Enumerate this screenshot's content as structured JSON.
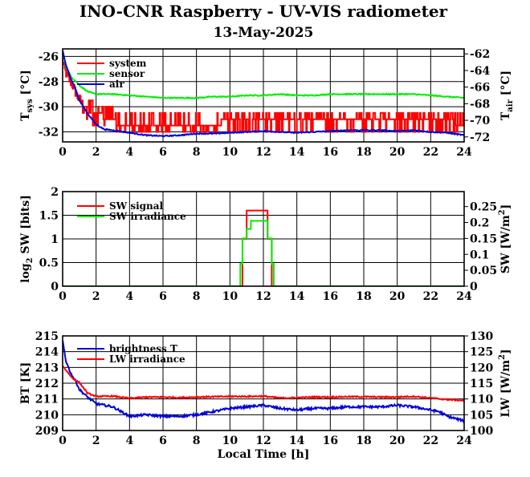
{
  "header": {
    "title": "INO-CNR Raspberry - UV-VIS radiometer",
    "date": "13-May-2025"
  },
  "chart_data": [
    {
      "type": "line",
      "panel": "temperature",
      "xlim": [
        0,
        24
      ],
      "x_ticks": [
        "0",
        "2",
        "4",
        "6",
        "8",
        "10",
        "12",
        "14",
        "16",
        "18",
        "20",
        "22",
        "24"
      ],
      "ylabel_main": "T",
      "ylabel_sub": "sys",
      "ylabel_unit": " [°C]",
      "ylim": [
        -32.8,
        -25.4
      ],
      "y_ticks": [
        "-26",
        "-28",
        "-30",
        "-32"
      ],
      "y2label_main": "T",
      "y2label_sub": "air",
      "y2label_unit": " [°C]",
      "y2lim": [
        -72.6,
        -61.4
      ],
      "y2_ticks": [
        "-62",
        "-64",
        "-66",
        "-68",
        "-70",
        "-72"
      ],
      "legend": "top-left",
      "series": [
        {
          "name": "system",
          "color": "#ff0000",
          "axis": "left",
          "x": [
            0,
            0.15,
            0.3,
            0.5,
            0.7,
            0.9,
            1.1,
            1.3,
            1.6,
            2.0,
            2.5,
            3.0,
            3.3,
            3.5,
            4,
            5,
            6,
            7,
            8,
            9,
            10,
            11,
            12,
            13,
            14,
            15,
            16,
            17,
            18,
            19,
            20,
            21,
            22,
            23,
            24
          ],
          "y": [
            -26.3,
            -27.0,
            -27.6,
            -28.0,
            -28.5,
            -29.2,
            -29.5,
            -30.0,
            -30.4,
            -30.6,
            -30.8,
            -31.0,
            -31.3,
            -31.5,
            -31.5,
            -31.5,
            -31.5,
            -31.4,
            -31.3,
            -31.3,
            -31.2,
            -31.2,
            -31.1,
            -31.2,
            -31.2,
            -31.2,
            -31.2,
            -31.1,
            -31.1,
            -31.1,
            -31.1,
            -31.2,
            -31.1,
            -31.2,
            -31.3
          ],
          "noise": 0.75
        },
        {
          "name": "sensor",
          "color": "#00ee00",
          "axis": "left",
          "x": [
            0,
            0.2,
            0.5,
            0.8,
            1.0,
            1.5,
            2,
            3,
            4,
            5,
            6,
            7,
            8,
            9,
            10,
            11,
            12,
            13,
            14,
            15,
            16,
            17,
            18,
            19,
            20,
            21,
            22,
            23,
            24
          ],
          "y": [
            -25.6,
            -26.8,
            -27.6,
            -28.0,
            -28.3,
            -28.8,
            -29.0,
            -29.0,
            -29.1,
            -29.2,
            -29.3,
            -29.3,
            -29.3,
            -29.2,
            -29.2,
            -29.1,
            -29.1,
            -29.0,
            -29.1,
            -29.1,
            -29.0,
            -29.0,
            -29.0,
            -29.0,
            -29.0,
            -29.0,
            -29.1,
            -29.2,
            -29.3
          ],
          "noise": 0.08
        },
        {
          "name": "air",
          "color": "#0000dd",
          "axis": "right",
          "x": [
            0,
            0.2,
            0.5,
            0.8,
            1.0,
            1.5,
            2.0,
            2.5,
            3,
            4,
            5,
            6,
            7,
            8,
            9,
            10,
            11,
            12,
            13,
            14,
            15,
            16,
            17,
            18,
            19,
            20,
            21,
            22,
            23,
            24
          ],
          "y": [
            -61.6,
            -63.4,
            -65.0,
            -66.4,
            -67.6,
            -69.2,
            -70.5,
            -71.1,
            -71.2,
            -71.5,
            -71.8,
            -71.9,
            -71.8,
            -71.6,
            -71.6,
            -71.5,
            -71.4,
            -71.3,
            -71.4,
            -71.5,
            -71.4,
            -71.3,
            -71.2,
            -71.2,
            -71.2,
            -71.3,
            -71.2,
            -71.4,
            -71.5,
            -71.8
          ],
          "noise": 0.12
        }
      ]
    },
    {
      "type": "line",
      "panel": "shortwave",
      "xlim": [
        0,
        24
      ],
      "x_ticks": [
        "0",
        "2",
        "4",
        "6",
        "8",
        "10",
        "12",
        "14",
        "16",
        "18",
        "20",
        "22",
        "24"
      ],
      "ylabel_main": "log",
      "ylabel_sub": "2",
      "ylabel_unit": " SW [bits]",
      "ylim": [
        0,
        2
      ],
      "y_ticks": [
        "0",
        "0.5",
        "1",
        "1.5",
        "2"
      ],
      "y2label_main": "SW [W/m",
      "y2label_sup": "2",
      "y2label_unit": "]",
      "y2lim": [
        0,
        0.297
      ],
      "y2_ticks": [
        "0",
        "0.05",
        "0.1",
        "0.15",
        "0.2",
        "0.25"
      ],
      "legend": "top-left",
      "series": [
        {
          "name": "SW signal",
          "color": "#ff0000",
          "axis": "left",
          "step": true,
          "x": [
            0,
            10.5,
            10.75,
            11.0,
            12.0,
            12.25,
            12.5,
            24
          ],
          "y": [
            0,
            0,
            1.0,
            1.6,
            1.6,
            1.0,
            0,
            0
          ]
        },
        {
          "name": "SW irradiance",
          "color": "#00ee00",
          "axis": "right",
          "step": true,
          "x": [
            0,
            10.5,
            10.62,
            10.75,
            11.0,
            11.25,
            12.0,
            12.25,
            12.5,
            12.62,
            24
          ],
          "y": [
            0,
            0,
            0.07,
            0.15,
            0.18,
            0.205,
            0.205,
            0.15,
            0.07,
            0,
            0
          ]
        }
      ]
    },
    {
      "type": "line",
      "panel": "longwave",
      "xlabel": "Local Time [h]",
      "xlim": [
        0,
        24
      ],
      "x_ticks": [
        "0",
        "2",
        "4",
        "6",
        "8",
        "10",
        "12",
        "14",
        "16",
        "18",
        "20",
        "22",
        "24"
      ],
      "ylabel_main": "BT [K]",
      "ylim": [
        209,
        215
      ],
      "y_ticks": [
        "209",
        "210",
        "211",
        "212",
        "213",
        "214",
        "215"
      ],
      "y2label_main": "LW [W/m",
      "y2label_sup": "2",
      "y2label_unit": "]",
      "y2lim": [
        100,
        130
      ],
      "y2_ticks": [
        "100",
        "105",
        "110",
        "115",
        "120",
        "125",
        "130"
      ],
      "legend": "top-left",
      "series": [
        {
          "name": "brightness T",
          "color": "#0000dd",
          "axis": "left",
          "x": [
            0,
            0.2,
            0.5,
            0.8,
            1.0,
            1.5,
            2.0,
            2.5,
            3.0,
            3.5,
            4,
            5,
            6,
            7,
            8,
            9,
            10,
            11,
            12,
            13,
            14,
            15,
            16,
            17,
            18,
            19,
            20,
            21,
            22,
            22.5,
            23,
            24
          ],
          "y": [
            214.7,
            213.4,
            212.6,
            212.1,
            211.6,
            211.1,
            210.7,
            210.6,
            210.5,
            210.2,
            209.9,
            210.0,
            209.9,
            209.9,
            210.0,
            210.2,
            210.4,
            210.5,
            210.6,
            210.4,
            210.3,
            210.4,
            210.4,
            210.5,
            210.5,
            210.5,
            210.6,
            210.5,
            210.3,
            210.2,
            209.9,
            209.6
          ],
          "noise": 0.14
        },
        {
          "name": "LW irradiance",
          "color": "#ff0000",
          "axis": "right",
          "x": [
            0,
            0.3,
            0.6,
            1.0,
            1.5,
            2.0,
            3,
            4,
            5,
            6,
            7,
            8,
            9,
            10,
            11,
            12,
            13,
            14,
            15,
            16,
            17,
            18,
            19,
            20,
            21,
            22,
            23,
            24
          ],
          "y": [
            120.5,
            118.5,
            116.5,
            115.2,
            111.8,
            110.8,
            110.9,
            110.2,
            110.6,
            110.6,
            110.4,
            110.6,
            110.7,
            110.8,
            110.8,
            110.9,
            110.3,
            110.4,
            110.6,
            110.6,
            110.7,
            110.7,
            110.6,
            110.6,
            110.8,
            110.3,
            109.8,
            109.5
          ],
          "noise": 0.4
        }
      ]
    }
  ]
}
